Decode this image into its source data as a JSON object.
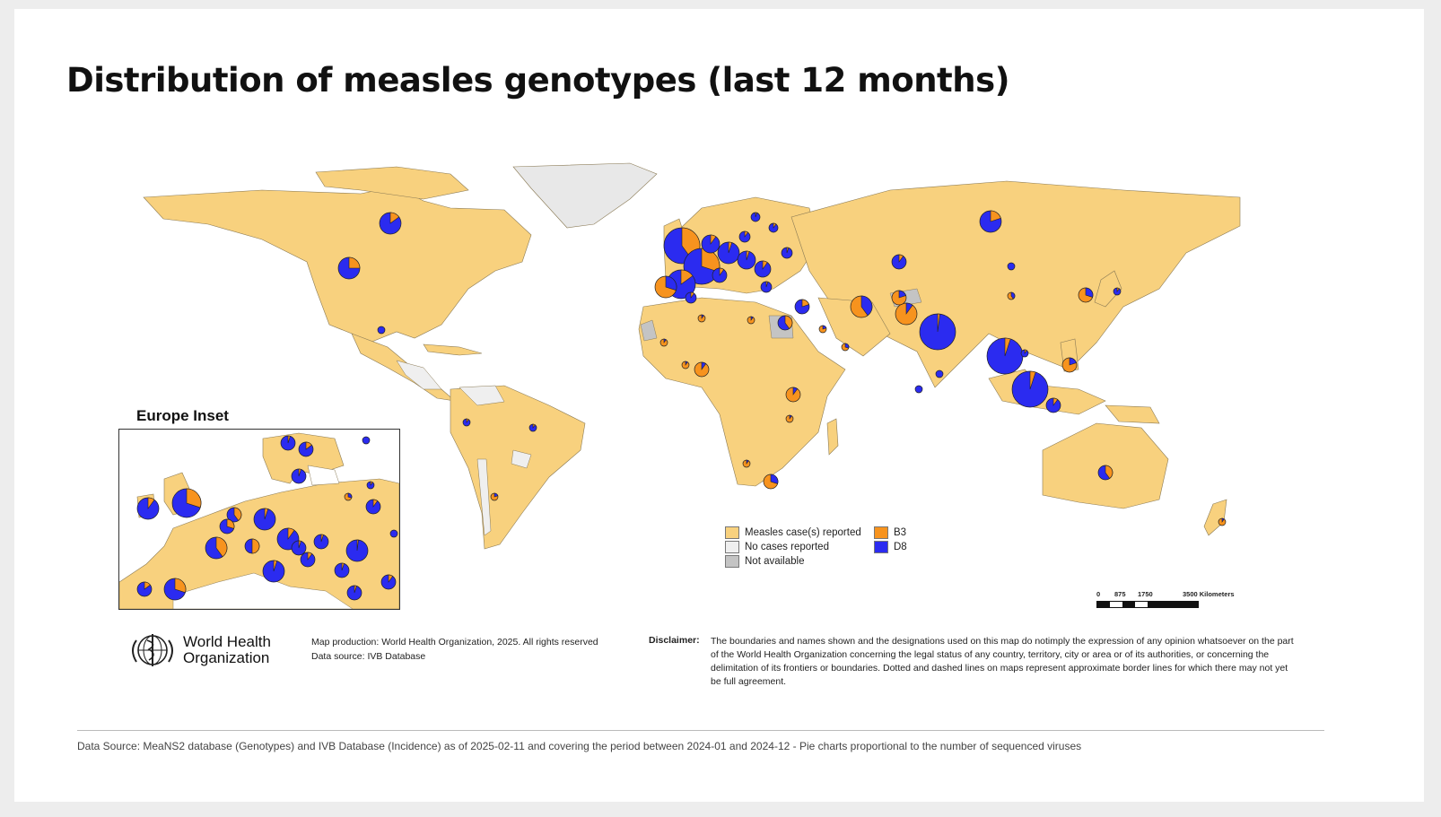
{
  "title": "Distribution of measles genotypes (last 12 months)",
  "inset_title": "Europe Inset",
  "colors": {
    "reported": "#f8d17e",
    "no_cases": "#efefef",
    "not_available": "#c4c4c4",
    "B3": "#f7931e",
    "D8": "#2b2bf0",
    "ocean": "#ffffff"
  },
  "legend": {
    "items": [
      {
        "label": "Measles case(s) reported",
        "color": "#f8d17e"
      },
      {
        "label": "No cases reported",
        "color": "#efefef"
      },
      {
        "label": "Not available",
        "color": "#c4c4c4"
      },
      {
        "label": "B3",
        "color": "#f7931e"
      },
      {
        "label": "D8",
        "color": "#2b2bf0"
      }
    ]
  },
  "scale_bar": {
    "labels": [
      "0",
      "875",
      "1750",
      "3500 Kilometers"
    ]
  },
  "pies": [
    {
      "name": "canada",
      "d8_share": 0.85,
      "size": 3
    },
    {
      "name": "usa",
      "d8_share": 0.75,
      "size": 3
    },
    {
      "name": "mexico",
      "d8_share": 1.0,
      "size": 1
    },
    {
      "name": "colombia",
      "d8_share": 0.9,
      "size": 1
    },
    {
      "name": "brazil",
      "d8_share": 0.9,
      "size": 1
    },
    {
      "name": "argentina",
      "d8_share": 0.2,
      "size": 1
    },
    {
      "name": "uk-ireland",
      "d8_share": 0.6,
      "size": 5
    },
    {
      "name": "france",
      "d8_share": 0.7,
      "size": 5
    },
    {
      "name": "spain",
      "d8_share": 0.85,
      "size": 4
    },
    {
      "name": "morocco",
      "d8_share": 0.3,
      "size": 3
    },
    {
      "name": "algeria",
      "d8_share": 0.1,
      "size": 1
    },
    {
      "name": "libya",
      "d8_share": 0.1,
      "size": 1
    },
    {
      "name": "egypt",
      "d8_share": 0.6,
      "size": 2
    },
    {
      "name": "turkey",
      "d8_share": 0.8,
      "size": 2
    },
    {
      "name": "iraq",
      "d8_share": 0.2,
      "size": 1
    },
    {
      "name": "iran",
      "d8_share": 0.4,
      "size": 3
    },
    {
      "name": "saudi",
      "d8_share": 0.3,
      "size": 1
    },
    {
      "name": "pakistan",
      "d8_share": 0.1,
      "size": 3
    },
    {
      "name": "afghanistan",
      "d8_share": 0.2,
      "size": 2
    },
    {
      "name": "india",
      "d8_share": 0.98,
      "size": 5
    },
    {
      "name": "kazakhstan",
      "d8_share": 0.9,
      "size": 2
    },
    {
      "name": "russia",
      "d8_share": 0.8,
      "size": 3
    },
    {
      "name": "mongolia",
      "d8_share": 1.0,
      "size": 1
    },
    {
      "name": "china",
      "d8_share": 0.4,
      "size": 1
    },
    {
      "name": "korea",
      "d8_share": 0.3,
      "size": 2
    },
    {
      "name": "japan",
      "d8_share": 0.9,
      "size": 1
    },
    {
      "name": "thailand",
      "d8_share": 0.95,
      "size": 5
    },
    {
      "name": "vietnam",
      "d8_share": 0.9,
      "size": 1
    },
    {
      "name": "philippines",
      "d8_share": 0.2,
      "size": 2
    },
    {
      "name": "malaysia",
      "d8_share": 0.95,
      "size": 5
    },
    {
      "name": "indonesia",
      "d8_share": 0.9,
      "size": 2
    },
    {
      "name": "srilanka",
      "d8_share": 1.0,
      "size": 1
    },
    {
      "name": "maldives",
      "d8_share": 1.0,
      "size": 1
    },
    {
      "name": "nigeria",
      "d8_share": 0.1,
      "size": 2
    },
    {
      "name": "ghana",
      "d8_share": 0.1,
      "size": 1
    },
    {
      "name": "mali",
      "d8_share": 0.1,
      "size": 1
    },
    {
      "name": "ethiopia",
      "d8_share": 0.1,
      "size": 2
    },
    {
      "name": "uganda",
      "d8_share": 0.1,
      "size": 1
    },
    {
      "name": "angola",
      "d8_share": 0.1,
      "size": 1
    },
    {
      "name": "southafrica",
      "d8_share": 0.3,
      "size": 2
    },
    {
      "name": "australia",
      "d8_share": 0.6,
      "size": 2
    },
    {
      "name": "newzealand",
      "d8_share": 0.1,
      "size": 1
    }
  ],
  "inset_pies": [
    {
      "name": "ireland",
      "d8_share": 0.9,
      "size": 3
    },
    {
      "name": "uk",
      "d8_share": 0.7,
      "size": 4
    },
    {
      "name": "norway",
      "d8_share": 0.95,
      "size": 2
    },
    {
      "name": "sweden",
      "d8_share": 0.85,
      "size": 2
    },
    {
      "name": "finland",
      "d8_share": 1.0,
      "size": 1
    },
    {
      "name": "baltic",
      "d8_share": 0.9,
      "size": 1
    },
    {
      "name": "denmark",
      "d8_share": 0.95,
      "size": 2
    },
    {
      "name": "netherlands",
      "d8_share": 0.6,
      "size": 2
    },
    {
      "name": "belgium",
      "d8_share": 0.7,
      "size": 2
    },
    {
      "name": "germany",
      "d8_share": 0.95,
      "size": 3
    },
    {
      "name": "poland",
      "d8_share": 0.3,
      "size": 1
    },
    {
      "name": "belarus",
      "d8_share": 0.9,
      "size": 2
    },
    {
      "name": "ukraine",
      "d8_share": 1.0,
      "size": 1
    },
    {
      "name": "france",
      "d8_share": 0.6,
      "size": 3
    },
    {
      "name": "switzerland",
      "d8_share": 0.5,
      "size": 2
    },
    {
      "name": "austria",
      "d8_share": 0.9,
      "size": 3
    },
    {
      "name": "czechia",
      "d8_share": 0.95,
      "size": 2
    },
    {
      "name": "hungary",
      "d8_share": 0.95,
      "size": 2
    },
    {
      "name": "romania",
      "d8_share": 0.98,
      "size": 3
    },
    {
      "name": "serbia",
      "d8_share": 0.9,
      "size": 2
    },
    {
      "name": "italy",
      "d8_share": 0.95,
      "size": 3
    },
    {
      "name": "balkans",
      "d8_share": 0.95,
      "size": 2
    },
    {
      "name": "greece",
      "d8_share": 0.95,
      "size": 2
    },
    {
      "name": "turkey",
      "d8_share": 0.9,
      "size": 2
    },
    {
      "name": "spain",
      "d8_share": 0.7,
      "size": 3
    },
    {
      "name": "portugal",
      "d8_share": 0.85,
      "size": 2
    }
  ],
  "who": {
    "line1": "World Health",
    "line2": "Organization"
  },
  "credits": {
    "line1": "Map production: World Health Organization, 2025. All rights reserved",
    "line2": "Data source: IVB Database"
  },
  "disclaimer": {
    "label": "Disclaimer:",
    "text": "The boundaries and names shown and the designations used on this map do notimply the expression of any opinion whatsoever on the part of the World Health Organization concerning the legal status of any country, territory, city or area or of its authorities, or concerning the delimitation of its frontiers or boundaries. Dotted and dashed lines on maps represent approximate border lines for which there may not yet be full agreement."
  },
  "footer": "Data Source: MeaNS2 database (Genotypes) and IVB Database (Incidence) as of 2025-02-11 and covering the period between 2024-01 and 2024-12 - Pie charts proportional to the number of sequenced viruses"
}
